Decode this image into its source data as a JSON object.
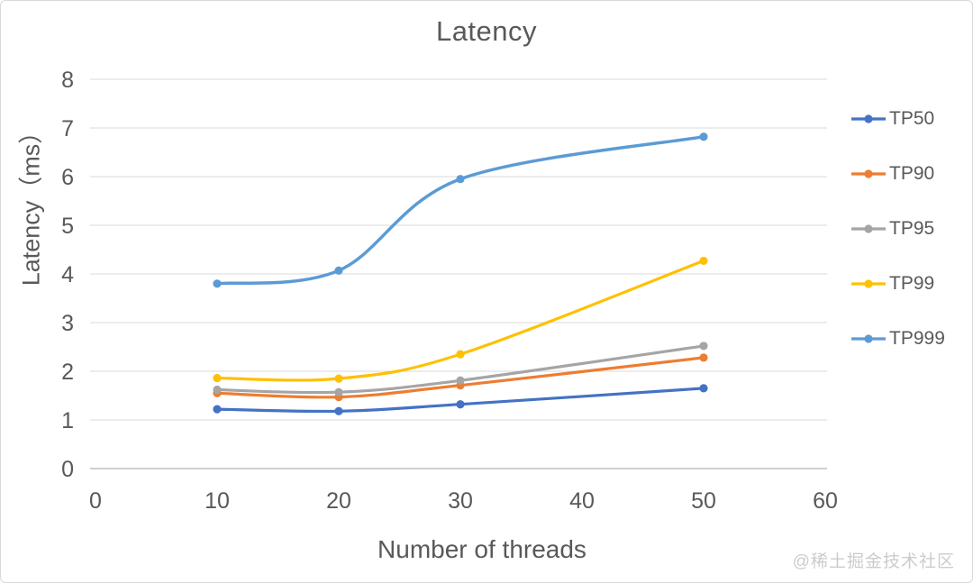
{
  "title": "Latency",
  "watermark": "@稀土掘金技术社区",
  "chart_data": {
    "type": "line",
    "title": "Latency",
    "xlabel": "Number of threads",
    "ylabel": "Latency（ms）",
    "x": [
      10,
      20,
      30,
      50
    ],
    "series": [
      {
        "name": "TP50",
        "color": "#4472C4",
        "values": [
          1.22,
          1.18,
          1.32,
          1.65
        ]
      },
      {
        "name": "TP90",
        "color": "#ED7D31",
        "values": [
          1.55,
          1.47,
          1.71,
          2.28
        ]
      },
      {
        "name": "TP95",
        "color": "#A5A5A5",
        "values": [
          1.62,
          1.57,
          1.81,
          2.52
        ]
      },
      {
        "name": "TP99",
        "color": "#FFC000",
        "values": [
          1.86,
          1.85,
          2.35,
          4.27
        ]
      },
      {
        "name": "TP999",
        "color": "#5B9BD5",
        "values": [
          3.8,
          4.07,
          5.95,
          6.82
        ]
      }
    ],
    "xlim": [
      0,
      60
    ],
    "ylim": [
      0,
      8
    ],
    "x_ticks": [
      0,
      10,
      20,
      30,
      40,
      50,
      60
    ],
    "y_ticks": [
      0,
      1,
      2,
      3,
      4,
      5,
      6,
      7,
      8
    ],
    "grid": true,
    "smooth": true,
    "legend_position": "right"
  },
  "colors": {
    "text": "#595959",
    "grid": "#D9D9D9",
    "axis": "#BFBFBF",
    "background": "#FFFFFF",
    "border": "#D9D9D9",
    "watermark": "#CBCCCD"
  }
}
